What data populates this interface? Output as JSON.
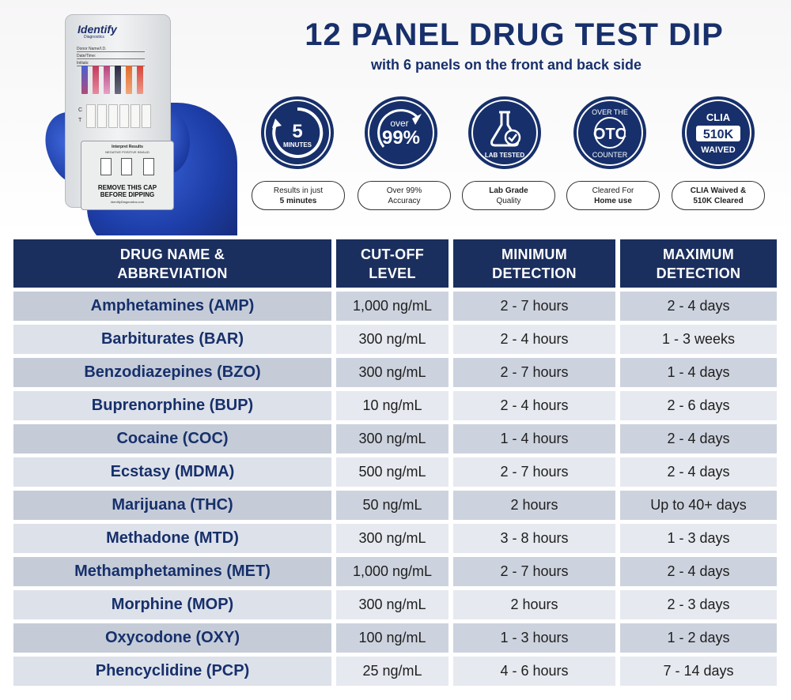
{
  "header": {
    "title": "12 PANEL DRUG TEST DIP",
    "subtitle": "with 6 panels on the front and back side"
  },
  "product": {
    "brand": "Identify",
    "brand_sub": "Diagnostics",
    "fields": [
      "Donor Name/I.D.",
      "Date/Time:",
      "Initials:"
    ],
    "interpret_title": "Interpret Results",
    "interpret_legend": "NEGATIVE  POSITIVE  INVALID",
    "cap_warning_line1": "REMOVE THIS CAP",
    "cap_warning_line2": "BEFORE DIPPING",
    "url": "IdentifyDiagnostics.com",
    "glove_color": "#1d3ea8"
  },
  "badges": [
    {
      "icon": "clock-icon",
      "big": "5",
      "small": "MINUTES",
      "pill_line1": "Results in just",
      "pill_line2": "5 minutes"
    },
    {
      "icon": "accuracy-arrow-icon",
      "small": "over",
      "big": "99%",
      "pill_line1": "Over 99%",
      "pill_line2": "Accuracy"
    },
    {
      "icon": "flask-icon",
      "small": "LAB TESTED",
      "pill_line1": "Lab Grade",
      "pill_line2": "Quality"
    },
    {
      "icon": "otc-icon",
      "big": "OTC",
      "top": "OVER THE",
      "bottom": "COUNTER",
      "pill_line1": "Cleared For",
      "pill_line2": "Home use"
    },
    {
      "icon": "clia-icon",
      "top": "CLIA",
      "big": "510K",
      "bottom": "WAIVED",
      "pill_line1": "CLIA Waived &",
      "pill_line2": "510K Cleared"
    }
  ],
  "table": {
    "headers": [
      "DRUG NAME & ABBREVIATION",
      "CUT-OFF LEVEL",
      "MINIMUM DETECTION",
      "MAXIMUM DETECTION"
    ],
    "header_lines": [
      [
        "DRUG NAME &",
        "ABBREVIATION"
      ],
      [
        "CUT-OFF",
        "LEVEL"
      ],
      [
        "MINIMUM",
        "DETECTION"
      ],
      [
        "MAXIMUM",
        "DETECTION"
      ]
    ],
    "rows": [
      {
        "name": "Amphetamines (AMP)",
        "cutoff": "1,000 ng/mL",
        "min": "2 - 7 hours",
        "max": "2 - 4 days"
      },
      {
        "name": "Barbiturates (BAR)",
        "cutoff": "300 ng/mL",
        "min": "2 - 4 hours",
        "max": "1 - 3 weeks"
      },
      {
        "name": "Benzodiazepines (BZO)",
        "cutoff": "300 ng/mL",
        "min": "2 - 7 hours",
        "max": "1 - 4 days"
      },
      {
        "name": "Buprenorphine (BUP)",
        "cutoff": "10 ng/mL",
        "min": "2 - 4 hours",
        "max": "2 - 6 days"
      },
      {
        "name": "Cocaine (COC)",
        "cutoff": "300 ng/mL",
        "min": "1 - 4 hours",
        "max": "2 - 4 days"
      },
      {
        "name": "Ecstasy (MDMA)",
        "cutoff": "500 ng/mL",
        "min": "2 - 7 hours",
        "max": "2 - 4 days"
      },
      {
        "name": "Marijuana (THC)",
        "cutoff": "50 ng/mL",
        "min": "2 hours",
        "max": "Up to 40+ days"
      },
      {
        "name": "Methadone (MTD)",
        "cutoff": "300 ng/mL",
        "min": "3 - 8 hours",
        "max": "1 - 3 days"
      },
      {
        "name": "Methamphetamines (MET)",
        "cutoff": "1,000 ng/mL",
        "min": "2 - 7 hours",
        "max": "2 - 4 days"
      },
      {
        "name": "Morphine (MOP)",
        "cutoff": "300 ng/mL",
        "min": "2 hours",
        "max": "2 - 3 days"
      },
      {
        "name": "Oxycodone (OXY)",
        "cutoff": "100 ng/mL",
        "min": "1 - 3 hours",
        "max": "1 - 2 days"
      },
      {
        "name": "Phencyclidine (PCP)",
        "cutoff": "25 ng/mL",
        "min": "4 - 6 hours",
        "max": "7 - 14 days"
      }
    ]
  },
  "colors": {
    "navy": "#17306b",
    "header_bg": "#1b2f5e",
    "row_shade": "#cdd3de",
    "row_light": "#e6e9ef"
  }
}
